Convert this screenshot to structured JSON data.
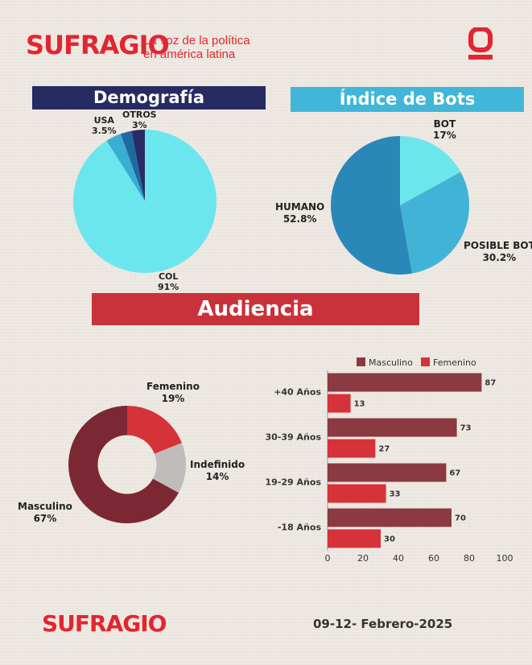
{
  "brand": {
    "name": "SUFRAGIO",
    "tagline_line1": "La voz de la política",
    "tagline_line2": "en américa latina",
    "icon": "sufragio-mark-icon",
    "color": "#e2262f"
  },
  "sections": {
    "demografia": "Demografía",
    "bots": "Índice de Bots",
    "audiencia": "Audiencia"
  },
  "footer": {
    "date": "09-12- Febrero-2025"
  },
  "chart_data": [
    {
      "type": "pie",
      "title": "Demografía",
      "slices": [
        {
          "label": "COL",
          "value_text": "91%",
          "value": 91,
          "color": "#6be6ee"
        },
        {
          "label": "USA",
          "value_text": "3.5%",
          "value": 3.5,
          "color": "#3aaed1"
        },
        {
          "label": "",
          "value_text": "",
          "value": 2.5,
          "color": "#1e6aa0"
        },
        {
          "label": "OTROS",
          "value_text": "3%",
          "value": 3,
          "color": "#2a2a66"
        }
      ]
    },
    {
      "type": "pie",
      "title": "Índice de Bots",
      "slices": [
        {
          "label": "BOT",
          "value_text": "17%",
          "value": 17,
          "color": "#6be6ea"
        },
        {
          "label": "POSIBLE BOT",
          "value_text": "30.2%",
          "value": 30.2,
          "color": "#41b3d6"
        },
        {
          "label": "HUMANO",
          "value_text": "52.8%",
          "value": 52.8,
          "color": "#2a88b8"
        }
      ]
    },
    {
      "type": "pie",
      "subtype": "donut",
      "slices": [
        {
          "label": "Femenino",
          "value_text": "19%",
          "value": 19,
          "color": "#d5323a"
        },
        {
          "label": "Indefinido",
          "value_text": "14%",
          "value": 14,
          "color": "#c0bcbc"
        },
        {
          "label": "Masculino",
          "value_text": "67%",
          "value": 67,
          "color": "#7c2834"
        }
      ]
    },
    {
      "type": "bar",
      "orientation": "horizontal",
      "categories": [
        "+40 Años",
        "30-39 Años",
        "19-29 Años",
        "-18 Años"
      ],
      "series": [
        {
          "name": "Masculino",
          "values": [
            87,
            73,
            67,
            70
          ],
          "color": "#8a3a40"
        },
        {
          "name": "Femenino",
          "values": [
            13,
            27,
            33,
            30
          ],
          "color": "#d5323a"
        }
      ],
      "xlim": [
        0,
        100
      ],
      "xticks": [
        "0",
        "20",
        "40",
        "60",
        "80",
        "100"
      ],
      "legend": "top",
      "grid": false
    }
  ]
}
